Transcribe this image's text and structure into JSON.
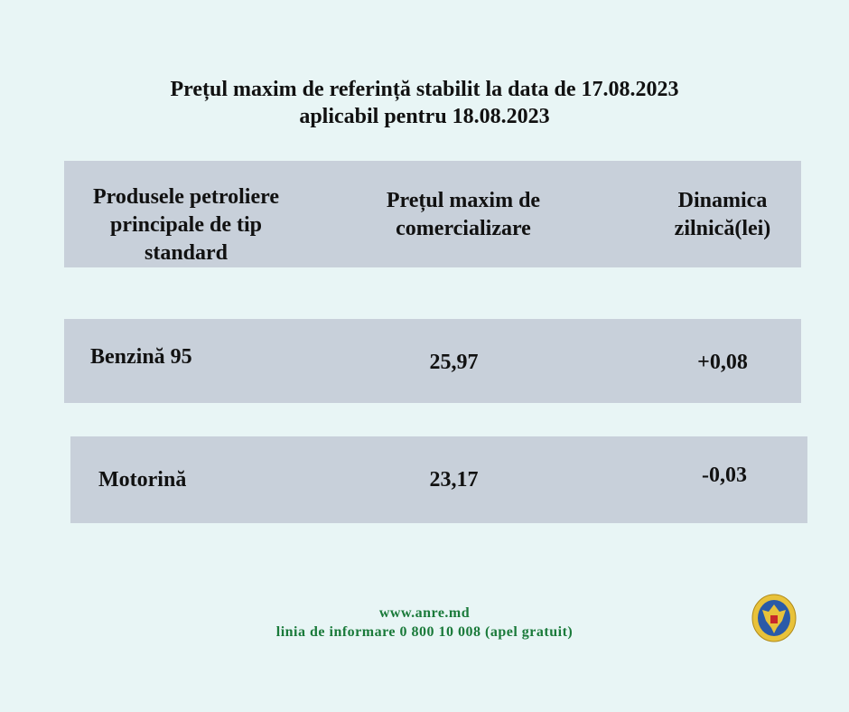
{
  "title": {
    "line1": "Prețul maxim de referință stabilit la data de 17.08.2023",
    "line2": "aplicabil pentru 18.08.2023"
  },
  "table": {
    "headers": [
      "Produsele petroliere principale de tip standard",
      "Prețul maxim de comercializare",
      "Dinamica zilnică(lei)"
    ],
    "header_lines": [
      [
        "Produsele petroliere",
        "principale de tip",
        "standard"
      ],
      [
        "Prețul maxim de",
        "comercializare"
      ],
      [
        "Dinamica",
        "zilnică(lei)"
      ]
    ],
    "rows": [
      {
        "product": "Benzină 95",
        "price": "25,97",
        "change": "+0,08"
      },
      {
        "product": "Motorină",
        "price": "23,17",
        "change": "-0,03"
      }
    ]
  },
  "footer": {
    "website": "www.anre.md",
    "hotline": "linia de informare 0 800 10 008 (apel gratuit)"
  },
  "logo": {
    "icon": "moldova-coat-of-arms-seal"
  },
  "colors": {
    "background": "#e8f5f5",
    "band": "#c8d0da",
    "footer_text": "#1a7a3a"
  }
}
